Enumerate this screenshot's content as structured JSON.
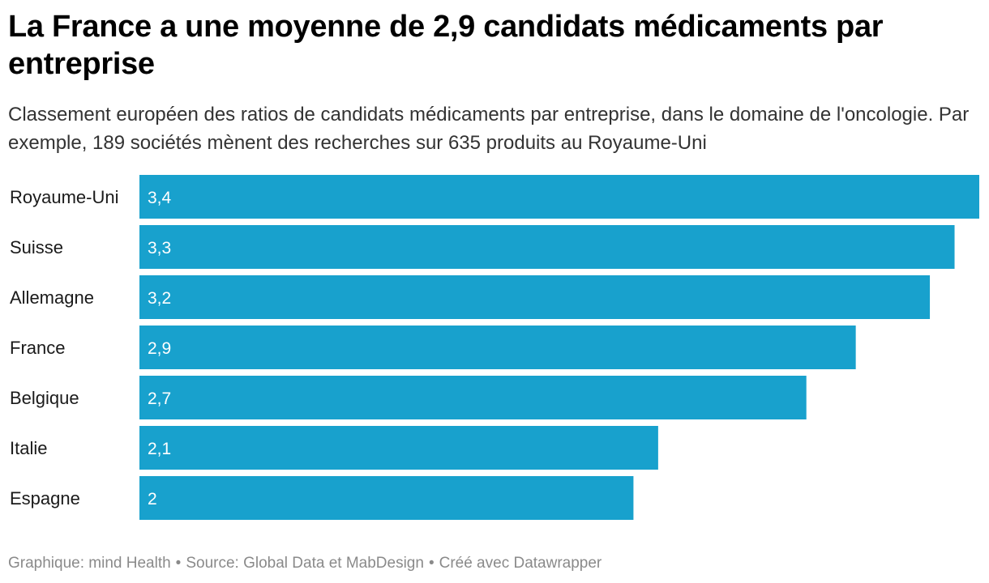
{
  "header": {
    "title": "La France a une moyenne de 2,9 candidats médicaments par entreprise",
    "subtitle": "Classement européen des ratios de candidats médicaments par entreprise, dans le domaine de l'oncologie. Par exemple, 189 sociétés mènent des recherches sur 635 produits au Royaume-Uni"
  },
  "chart_data": {
    "type": "bar",
    "orientation": "horizontal",
    "title": "La France a une moyenne de 2,9 candidats médicaments par entreprise",
    "subtitle": "Classement européen des ratios de candidats médicaments par entreprise, dans le domaine de l'oncologie. Par exemple, 189 sociétés mènent des recherches sur 635 produits au Royaume-Uni",
    "categories": [
      "Royaume-Uni",
      "Suisse",
      "Allemagne",
      "France",
      "Belgique",
      "Italie",
      "Espagne"
    ],
    "values": [
      3.4,
      3.3,
      3.2,
      2.9,
      2.7,
      2.1,
      2
    ],
    "value_labels": [
      "3,4",
      "3,3",
      "3,2",
      "2,9",
      "2,7",
      "2,1",
      "2"
    ],
    "xlim": [
      0,
      3.4
    ],
    "xlabel": "",
    "ylabel": "",
    "grid": false,
    "legend": "none",
    "bar_color": "#18a1cd"
  },
  "footer": {
    "credit": "Graphique: mind Health",
    "source": "Source: Global Data et MabDesign",
    "tool": "Créé avec Datawrapper",
    "separator": "•"
  }
}
